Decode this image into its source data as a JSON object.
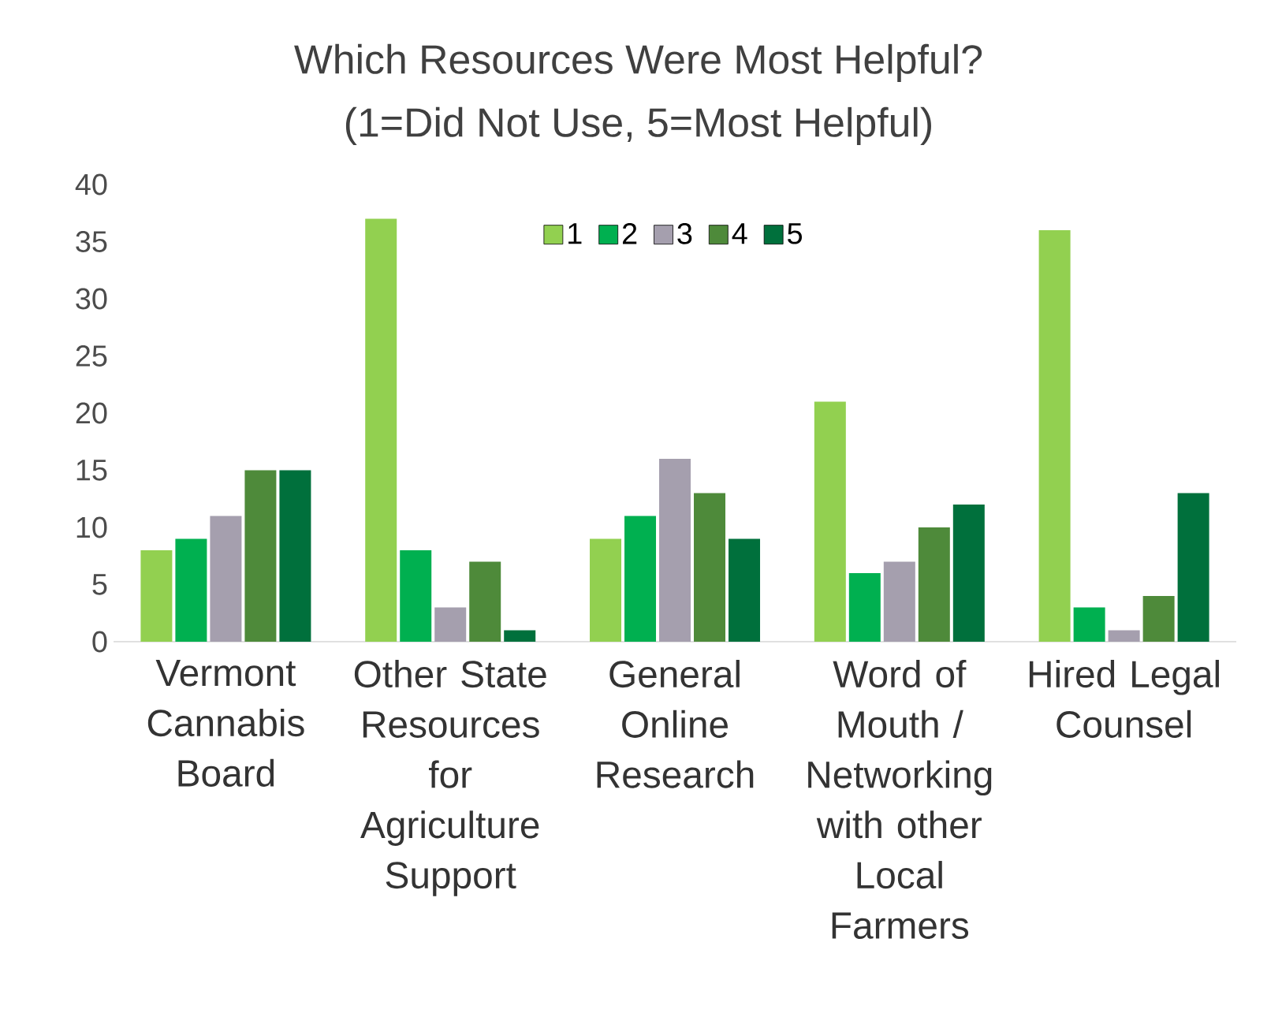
{
  "chart_data": {
    "type": "bar",
    "title": "Which Resources Were Most Helpful?",
    "subtitle": "(1=Did Not Use, 5=Most Helpful)",
    "categories": [
      "Vermont Cannabis Board",
      "Other State Resources for Agriculture Support",
      "General Online Research",
      "Word of Mouth / Networking with other Local Farmers",
      "Hired Legal Counsel"
    ],
    "series": [
      {
        "name": "1",
        "color": "#92d050",
        "values": [
          8,
          37,
          9,
          21,
          36
        ]
      },
      {
        "name": "2",
        "color": "#00b050",
        "values": [
          9,
          8,
          11,
          6,
          3
        ]
      },
      {
        "name": "3",
        "color": "#a59fae",
        "values": [
          11,
          3,
          16,
          7,
          1
        ]
      },
      {
        "name": "4",
        "color": "#4e8a3a",
        "values": [
          15,
          7,
          13,
          10,
          4
        ]
      },
      {
        "name": "5",
        "color": "#00703c",
        "values": [
          15,
          1,
          9,
          12,
          13
        ]
      }
    ],
    "ylim": [
      0,
      40
    ],
    "yticks": [
      0,
      5,
      10,
      15,
      20,
      25,
      30,
      35,
      40
    ],
    "legend": "top",
    "grid": false
  }
}
